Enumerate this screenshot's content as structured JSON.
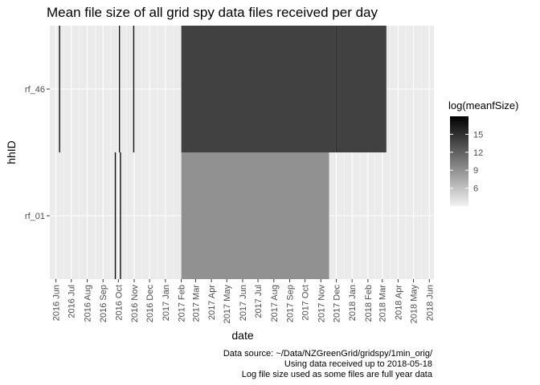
{
  "chart_data": {
    "type": "heatmap",
    "title": "Mean file size of all grid spy data files received per day",
    "xlabel": "date",
    "ylabel": "hhID",
    "x_ticks": [
      "2016 Jun",
      "2016 Jul",
      "2016 Aug",
      "2016 Sep",
      "2016 Oct",
      "2016 Nov",
      "2016 Dec",
      "2017 Jan",
      "2017 Feb",
      "2017 Mar",
      "2017 Apr",
      "2017 May",
      "2017 Jun",
      "2017 Jul",
      "2017 Aug",
      "2017 Sep",
      "2017 Oct",
      "2017 Nov",
      "2017 Dec",
      "2018 Jan",
      "2018 Feb",
      "2018 Mar",
      "2018 Apr",
      "2018 May",
      "2018 Jun"
    ],
    "xlim": [
      "2016-05-20",
      "2018-06-10"
    ],
    "categories": [
      "rf_01",
      "rf_46"
    ],
    "grid": true,
    "legend": {
      "title": "log(meanfSize)",
      "position": "right",
      "range": [
        3,
        18
      ],
      "ticks": [
        6,
        9,
        12,
        15
      ]
    },
    "series": [
      {
        "hhID": "rf_46",
        "spans": [
          {
            "start": "2016-06-07",
            "end": "2016-06-07",
            "value": 17
          },
          {
            "start": "2016-10-02",
            "end": "2016-10-02",
            "value": 17
          },
          {
            "start": "2016-10-30",
            "end": "2016-10-30",
            "value": 17
          },
          {
            "start": "2017-02-01",
            "end": "2017-11-29",
            "value": 14
          },
          {
            "start": "2017-11-30",
            "end": "2017-11-30",
            "value": 17
          },
          {
            "start": "2017-12-01",
            "end": "2018-03-08",
            "value": 14
          }
        ]
      },
      {
        "hhID": "rf_01",
        "spans": [
          {
            "start": "2016-09-24",
            "end": "2016-09-24",
            "value": 17
          },
          {
            "start": "2016-10-04",
            "end": "2016-10-04",
            "value": 17
          },
          {
            "start": "2017-02-01",
            "end": "2017-11-16",
            "value": 9
          }
        ]
      }
    ]
  },
  "caption": {
    "line1": "Data source: ~/Data/NZGreenGrid/gridspy/1min_orig/",
    "line2": "Using data received up to 2018-05-18",
    "line3": "Log file size used as some files are full year data"
  }
}
